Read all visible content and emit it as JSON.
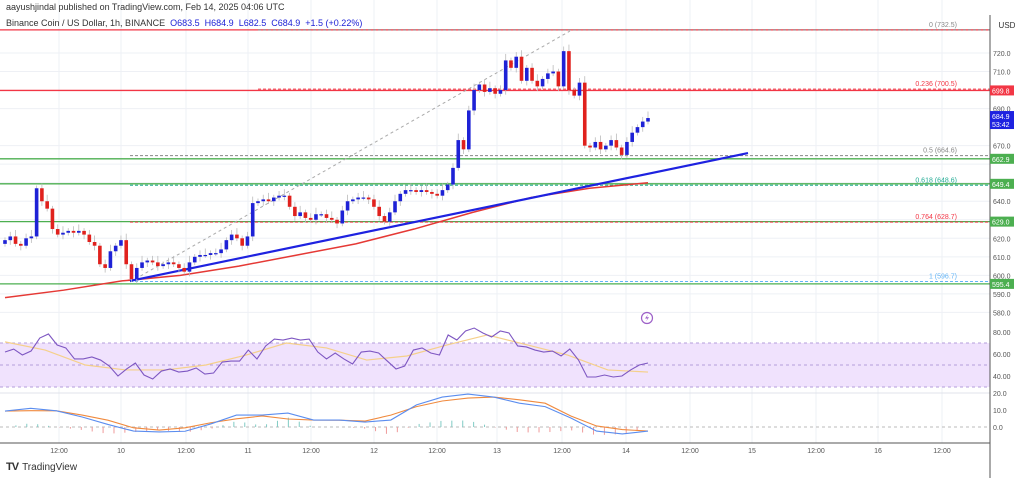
{
  "header": {
    "published": "aayushjindal published on TradingView.com, Feb 14, 2025 04:06 UTC",
    "symbol": "Binance Coin / US Dollar, 1h, BINANCE",
    "open": "O683.5",
    "high": "H684.9",
    "low": "L682.5",
    "close": "C684.9",
    "change": "+1.5 (+0.22%)"
  },
  "footer": {
    "brand": "TradingView",
    "logo_icon": "tradingview-logo-icon"
  },
  "price_axis": {
    "currency": "USD",
    "ticks": [
      "720.0",
      "710.0",
      "690.0",
      "670.0",
      "640.0",
      "620.0",
      "610.0",
      "600.0",
      "590.0",
      "580.0"
    ],
    "tick_values": [
      720,
      710,
      690,
      670,
      640,
      620,
      610,
      600,
      590,
      580
    ],
    "badges": [
      {
        "text": "699.8",
        "value": 699.8,
        "color": "#f23645"
      },
      {
        "text": "662.9",
        "value": 662.9,
        "color": "#4caf50"
      },
      {
        "text": "649.4",
        "value": 649.4,
        "color": "#4caf50"
      },
      {
        "text": "629.0",
        "value": 629.0,
        "color": "#4caf50"
      },
      {
        "text": "595.4",
        "value": 595.4,
        "color": "#4caf50"
      }
    ],
    "last_price": {
      "text": "684.9",
      "countdown": "53:42",
      "value": 684.9,
      "color": "#1e22e0"
    }
  },
  "rsi_axis": {
    "ticks": [
      "80.00",
      "60.00",
      "40.00"
    ],
    "values": [
      80,
      60,
      40
    ]
  },
  "macd_axis": {
    "ticks": [
      "20.0",
      "10.0",
      "0.0"
    ],
    "values": [
      20,
      10,
      0
    ]
  },
  "time_axis": [
    "12:00",
    "10",
    "12:00",
    "11",
    "12:00",
    "12",
    "12:00",
    "13",
    "12:00",
    "14",
    "12:00",
    "15",
    "12:00",
    "16",
    "12:00"
  ],
  "fib_levels": [
    {
      "label": "0 (732.5)",
      "value": 732.5,
      "color": "#888888"
    },
    {
      "label": "0.236 (700.5)",
      "value": 700.5,
      "color": "#f23645"
    },
    {
      "label": "0.5 (664.6)",
      "value": 664.6,
      "color": "#888888"
    },
    {
      "label": "0.618 (648.6)",
      "value": 648.6,
      "color": "#22ab94"
    },
    {
      "label": "0.764 (628.7)",
      "value": 628.7,
      "color": "#f23645"
    },
    {
      "label": "1 (596.7)",
      "value": 596.7,
      "color": "#64b5f6"
    }
  ],
  "horizontal_lines": [
    {
      "value": 732.5,
      "color": "#f23645"
    },
    {
      "value": 699.8,
      "color": "#f23645"
    },
    {
      "value": 662.9,
      "color": "#4caf50"
    },
    {
      "value": 649.4,
      "color": "#4caf50"
    },
    {
      "value": 629.0,
      "color": "#4caf50"
    },
    {
      "value": 595.4,
      "color": "#4caf50"
    }
  ],
  "trendline": {
    "from": 597,
    "to": 666,
    "color": "#1e22e0"
  },
  "colors": {
    "up": "#1e22d6",
    "down": "#e0211d",
    "ma": "#e53935",
    "rsi": "#7e57c2",
    "rsi_ma": "#f5d08a",
    "rsi_band": "#f0e2fd",
    "macd": "#5b8def",
    "signal": "#f08a3e"
  },
  "chart_data": {
    "type": "candlestick",
    "interval": "1h",
    "first_open": 617,
    "closes": [
      619,
      621,
      617,
      616,
      620,
      621,
      647,
      640,
      636,
      625,
      622,
      623,
      624,
      623,
      624,
      622,
      618,
      616,
      606,
      604,
      613,
      616,
      619,
      606,
      598,
      604,
      607,
      608,
      607,
      605,
      606,
      607,
      606,
      604,
      602,
      607,
      610,
      611,
      611,
      612,
      612,
      614,
      619,
      622,
      620,
      616,
      621,
      639,
      640,
      641,
      640,
      642,
      643,
      643,
      637,
      632,
      634,
      631,
      630,
      633,
      633,
      631,
      630,
      628,
      635,
      640,
      641,
      642,
      642,
      641,
      637,
      632,
      629,
      634,
      640,
      644,
      646,
      646,
      645,
      646,
      645,
      644,
      643,
      646,
      649,
      658,
      673,
      668,
      689,
      700,
      703,
      699,
      701,
      698,
      700,
      716,
      712,
      718,
      705,
      712,
      705,
      702,
      706,
      709,
      710,
      702,
      721,
      700,
      697,
      704,
      670,
      669,
      672,
      668,
      670,
      673,
      669,
      665,
      672,
      677,
      680,
      683,
      684.9
    ],
    "ma": [
      588,
      592,
      597,
      600,
      605,
      611,
      617,
      625,
      634,
      642,
      647,
      650
    ],
    "rsi": [
      61.8,
      64.5,
      59.1,
      62.7,
      74.5,
      78.2,
      68.2,
      65.5,
      55.5,
      55.5,
      57.3,
      54.5,
      49.1,
      40,
      46.4,
      51.8,
      40.9,
      37.3,
      44.5,
      46.4,
      43.6,
      44.5,
      47.3,
      41.8,
      42.7,
      52.7,
      53.6,
      53.6,
      63.6,
      55.5,
      67.3,
      73.6,
      72.7,
      74.5,
      72.7,
      73.6,
      61.8,
      55.5,
      60.9,
      55.5,
      50.9,
      61.8,
      62.7,
      60.9,
      53.6,
      46.4,
      49.1,
      63.6,
      65.5,
      60.9,
      59.1,
      77.3,
      72.7,
      80.9,
      83.6,
      79.1,
      75.5,
      80.9,
      79.1,
      67.3,
      66.4,
      63.6,
      61.8,
      62.7,
      58.2,
      64.5,
      54.5,
      39.1,
      39.1,
      40.9,
      39.1,
      40,
      45.5,
      50,
      51.8
    ],
    "rsi_ma": [
      71,
      63.6,
      50,
      45.5,
      45.5,
      50,
      59,
      70,
      65.5,
      54.5,
      58.2,
      68.2,
      77.3,
      68.2,
      59,
      45.5,
      43.6
    ],
    "rsi_band": [
      30,
      70
    ],
    "macd": [
      9.4,
      11,
      9.5,
      5.9,
      1.5,
      -2.4,
      -2.9,
      -2.5,
      1.8,
      7,
      7,
      8.2,
      4.1,
      4.1,
      2.9,
      4.1,
      13,
      17.6,
      19.4,
      17.6,
      14,
      12,
      5.3,
      -2.4,
      -4.1,
      -2.4
    ],
    "signal": [
      9.4,
      9.6,
      9.5,
      7,
      4,
      -0.5,
      -1.8,
      -0.5,
      2.5,
      4.8,
      6.5,
      4.7,
      4.1,
      4,
      3.5,
      7,
      12,
      15.3,
      17,
      17.6,
      16,
      14,
      6.5,
      0.6,
      -1.5,
      -2.4
    ],
    "ylim": [
      575,
      740
    ]
  },
  "alert_icon": "lightning-icon"
}
